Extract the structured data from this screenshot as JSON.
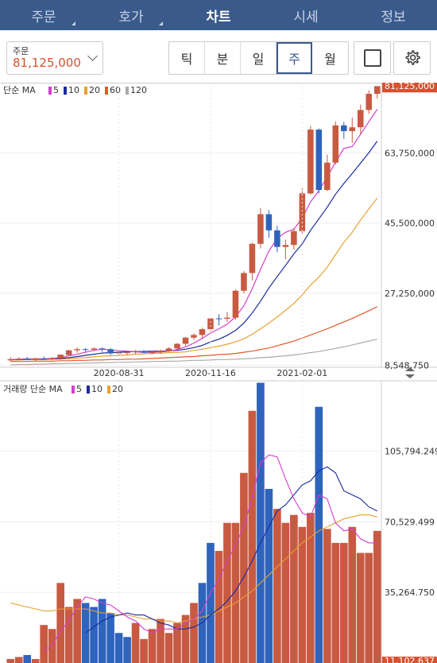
{
  "nav": {
    "tabs": [
      {
        "label": "주문",
        "dropdown": true
      },
      {
        "label": "호가",
        "dropdown": true
      },
      {
        "label": "차트",
        "active": true
      },
      {
        "label": "시세"
      },
      {
        "label": "정보"
      }
    ]
  },
  "toolbar": {
    "order_label": "주문",
    "order_value": "81,125,000",
    "periods": [
      "틱",
      "분",
      "일",
      "주",
      "월"
    ],
    "active_period": "주"
  },
  "colors": {
    "up": "#c85a42",
    "down": "#2f64bd",
    "ma5": "#d63ccf",
    "ma10": "#1a2aa0",
    "ma20": "#e8a030",
    "ma60": "#e05a28",
    "ma120": "#aaaaaa",
    "nav_bg": "#3a5a8c"
  },
  "chart_data": [
    {
      "type": "candlestick",
      "legend_prefix": "단순 MA",
      "legend": [
        {
          "name": "5",
          "color": "#d63ccf"
        },
        {
          "name": "10",
          "color": "#1a2aa0"
        },
        {
          "name": "20",
          "color": "#e8a030"
        },
        {
          "name": "60",
          "color": "#e05a28"
        },
        {
          "name": "120",
          "color": "#aaaaaa"
        }
      ],
      "y_ticks": [
        "81,125,000",
        "63,750,000",
        "45,500,000",
        "27,250,000",
        "8,548,750"
      ],
      "y_tick_values": [
        81125000,
        63750000,
        45500000,
        27250000,
        8548750
      ],
      "current_price": "81,125,000",
      "ylim": [
        8000000,
        82000000
      ],
      "x_tick_labels": [
        {
          "label": "2020-08-31",
          "index": 13
        },
        {
          "label": "2020-11-16",
          "index": 24
        },
        {
          "label": "2021-02-01",
          "index": 35
        }
      ],
      "ohlc": [
        [
          9.8,
          10.6,
          9.5,
          10.1
        ],
        [
          10.1,
          10.6,
          9.8,
          10.2
        ],
        [
          10.2,
          10.7,
          9.8,
          9.9
        ],
        [
          9.9,
          10.5,
          9.6,
          10.3
        ],
        [
          10.3,
          10.8,
          9.9,
          10.1
        ],
        [
          10.1,
          10.7,
          9.8,
          10.4
        ],
        [
          10.4,
          11.0,
          10.0,
          11.3
        ],
        [
          11.2,
          12.6,
          11.0,
          12.4
        ],
        [
          12.4,
          13.2,
          11.8,
          12.7
        ],
        [
          12.7,
          13.0,
          12.0,
          12.6
        ],
        [
          12.6,
          13.2,
          12.1,
          12.9
        ],
        [
          12.9,
          13.1,
          12.0,
          12.7
        ],
        [
          12.7,
          13.0,
          11.2,
          11.6
        ],
        [
          11.6,
          12.1,
          11.2,
          11.8
        ],
        [
          11.8,
          12.2,
          11.3,
          11.9
        ],
        [
          11.9,
          12.5,
          11.5,
          12.1
        ],
        [
          12.1,
          12.5,
          11.7,
          11.8
        ],
        [
          11.8,
          12.3,
          11.4,
          11.9
        ],
        [
          11.9,
          12.6,
          11.5,
          12.3
        ],
        [
          12.3,
          13.2,
          12.0,
          12.9
        ],
        [
          12.9,
          14.3,
          12.7,
          14.1
        ],
        [
          14.1,
          15.9,
          13.6,
          15.7
        ],
        [
          15.7,
          16.8,
          15.1,
          16.4
        ],
        [
          16.4,
          18.3,
          15.6,
          17.9
        ],
        [
          17.9,
          21.0,
          17.3,
          20.7
        ],
        [
          20.7,
          21.8,
          18.9,
          20.6
        ],
        [
          20.6,
          22.4,
          19.8,
          20.9
        ],
        [
          20.9,
          28.2,
          20.4,
          27.9
        ],
        [
          27.9,
          33.0,
          27.2,
          32.5
        ],
        [
          32.5,
          40.4,
          30.6,
          40.1
        ],
        [
          40.1,
          49.4,
          38.9,
          47.8
        ],
        [
          47.8,
          48.9,
          41.7,
          43.6
        ],
        [
          43.6,
          44.8,
          37.9,
          39.3
        ],
        [
          39.3,
          41.2,
          36.1,
          39.8
        ],
        [
          39.8,
          44.2,
          38.6,
          43.4
        ],
        [
          43.4,
          54.6,
          42.8,
          53.2
        ],
        [
          53.2,
          70.8,
          52.9,
          69.8
        ],
        [
          69.8,
          70.1,
          53.2,
          54.1
        ],
        [
          54.1,
          63.3,
          53.9,
          61.2
        ],
        [
          61.2,
          71.9,
          60.8,
          70.9
        ],
        [
          70.9,
          71.8,
          67.4,
          69.4
        ],
        [
          69.4,
          72.9,
          66.3,
          70.4
        ],
        [
          70.4,
          76.3,
          68.5,
          74.9
        ],
        [
          74.9,
          80.0,
          73.9,
          79.1
        ],
        [
          79.1,
          81.1,
          77.9,
          81.1
        ]
      ],
      "ma5": [
        10.0,
        10.1,
        10.2,
        10.2,
        10.2,
        10.3,
        10.5,
        11.0,
        11.4,
        11.9,
        12.4,
        12.7,
        12.5,
        12.3,
        12.2,
        12.0,
        11.9,
        11.9,
        12.0,
        12.2,
        12.6,
        13.3,
        14.3,
        15.5,
        16.9,
        18.0,
        19.2,
        21.1,
        24.0,
        28.4,
        33.5,
        38.2,
        41.5,
        43.1,
        43.9,
        46.8,
        51.0,
        53.9,
        57.5,
        61.3,
        64.9,
        65.4,
        68.6,
        71.9,
        75.1
      ],
      "ma10": [
        10.0,
        10.0,
        10.1,
        10.1,
        10.1,
        10.2,
        10.3,
        10.5,
        10.8,
        11.1,
        11.4,
        11.7,
        11.8,
        11.9,
        12.0,
        12.1,
        12.1,
        12.2,
        12.2,
        12.3,
        12.4,
        12.7,
        13.1,
        13.7,
        14.6,
        15.3,
        16.3,
        17.6,
        19.5,
        22.1,
        25.2,
        28.6,
        31.6,
        34.5,
        37.5,
        40.1,
        43.6,
        46.6,
        49.6,
        53.0,
        55.8,
        58.4,
        61.1,
        63.8,
        66.8
      ],
      "ma20": [
        9.9,
        9.9,
        10.0,
        10.0,
        10.0,
        10.1,
        10.1,
        10.2,
        10.4,
        10.5,
        10.7,
        10.9,
        11.0,
        11.1,
        11.2,
        11.4,
        11.5,
        11.6,
        11.7,
        11.8,
        11.9,
        12.0,
        12.4,
        12.7,
        13.1,
        13.5,
        14.0,
        14.6,
        15.4,
        16.6,
        18.0,
        19.5,
        21.1,
        22.8,
        24.6,
        26.8,
        29.4,
        31.4,
        34.0,
        37.3,
        40.5,
        43.1,
        46.3,
        49.2,
        52.0
      ],
      "ma60": [
        9.5,
        9.5,
        9.5,
        9.6,
        9.6,
        9.6,
        9.7,
        9.7,
        9.8,
        9.8,
        9.9,
        9.9,
        10.0,
        10.0,
        10.1,
        10.1,
        10.2,
        10.3,
        10.4,
        10.5,
        10.6,
        10.7,
        10.8,
        11.0,
        11.1,
        11.3,
        11.4,
        11.6,
        11.9,
        12.2,
        12.6,
        13.0,
        13.6,
        14.2,
        14.8,
        15.6,
        16.4,
        17.2,
        18.0,
        18.9,
        19.8,
        20.7,
        21.7,
        22.7,
        23.8
      ],
      "ma120": [
        8.6,
        8.7,
        8.7,
        8.8,
        8.8,
        8.9,
        8.9,
        9.0,
        9.0,
        9.1,
        9.1,
        9.2,
        9.2,
        9.3,
        9.3,
        9.4,
        9.4,
        9.5,
        9.5,
        9.6,
        9.6,
        9.7,
        9.8,
        9.8,
        9.9,
        10.0,
        10.0,
        10.1,
        10.2,
        10.3,
        10.5,
        10.6,
        10.8,
        11.0,
        11.2,
        11.5,
        11.8,
        12.1,
        12.5,
        12.9,
        13.3,
        13.8,
        14.3,
        14.8,
        15.3
      ]
    },
    {
      "type": "volume_bar",
      "legend_prefix": "거래량 단순 MA",
      "legend": [
        {
          "name": "5",
          "color": "#d63ccf"
        },
        {
          "name": "10",
          "color": "#1a2aa0"
        },
        {
          "name": "20",
          "color": "#e8a030"
        }
      ],
      "y_ticks": [
        "105,794.249",
        "70,529.499",
        "35,264.750",
        "11,102.637"
      ],
      "y_tick_values": [
        105794.249,
        70529.499,
        35264.75,
        11102.637
      ],
      "ylim": [
        0,
        141000
      ],
      "volume": [
        2000,
        3000,
        4000,
        2000,
        19000,
        17000,
        40000,
        28000,
        32000,
        30000,
        28000,
        32000,
        25000,
        15000,
        13000,
        20000,
        12000,
        17000,
        22000,
        15000,
        20000,
        24000,
        30000,
        40000,
        60000,
        56000,
        70000,
        70000,
        95000,
        126000,
        140000,
        87000,
        77000,
        70000,
        74000,
        68000,
        75000,
        128000,
        67000,
        60000,
        60000,
        68000,
        55000,
        55000,
        66000
      ],
      "vol_up": [
        true,
        true,
        false,
        true,
        true,
        true,
        true,
        true,
        true,
        false,
        false,
        false,
        false,
        false,
        false,
        true,
        true,
        true,
        true,
        true,
        true,
        true,
        true,
        false,
        false,
        true,
        true,
        true,
        true,
        true,
        false,
        false,
        true,
        true,
        true,
        true,
        true,
        false,
        true,
        true,
        true,
        true,
        true,
        true,
        true
      ],
      "vol_ma5": [
        null,
        null,
        null,
        null,
        6000,
        9000,
        16000,
        21000,
        28000,
        33000,
        32000,
        30000,
        29000,
        26000,
        23000,
        21000,
        17000,
        15000,
        17000,
        17000,
        17000,
        20000,
        22000,
        26000,
        35000,
        42000,
        51000,
        59000,
        68000,
        83000,
        100000,
        104000,
        103000,
        92000,
        82000,
        75000,
        73000,
        84000,
        82000,
        70000,
        66000,
        67000,
        62000,
        60000,
        60000
      ],
      "vol_ma10": [
        null,
        null,
        null,
        null,
        null,
        null,
        null,
        null,
        null,
        15000,
        18000,
        21000,
        23000,
        24000,
        25000,
        24000,
        24000,
        22000,
        20000,
        19000,
        17000,
        17000,
        18000,
        20000,
        24000,
        27000,
        31000,
        36000,
        43000,
        51000,
        60000,
        68000,
        76000,
        79000,
        84000,
        89000,
        91000,
        96000,
        98000,
        95000,
        86000,
        84000,
        82000,
        78000,
        76000
      ],
      "vol_ma20": [
        30000,
        29000,
        28000,
        27000,
        26000,
        26000,
        27000,
        27000,
        27000,
        27000,
        26000,
        25000,
        25000,
        24000,
        24000,
        23000,
        22000,
        22000,
        21000,
        21000,
        20000,
        21000,
        22000,
        23000,
        24000,
        26000,
        28000,
        30000,
        33000,
        36000,
        40000,
        44000,
        48000,
        52000,
        56000,
        60000,
        63000,
        66000,
        68000,
        70000,
        72000,
        73000,
        74000,
        74000,
        73000
      ]
    }
  ]
}
